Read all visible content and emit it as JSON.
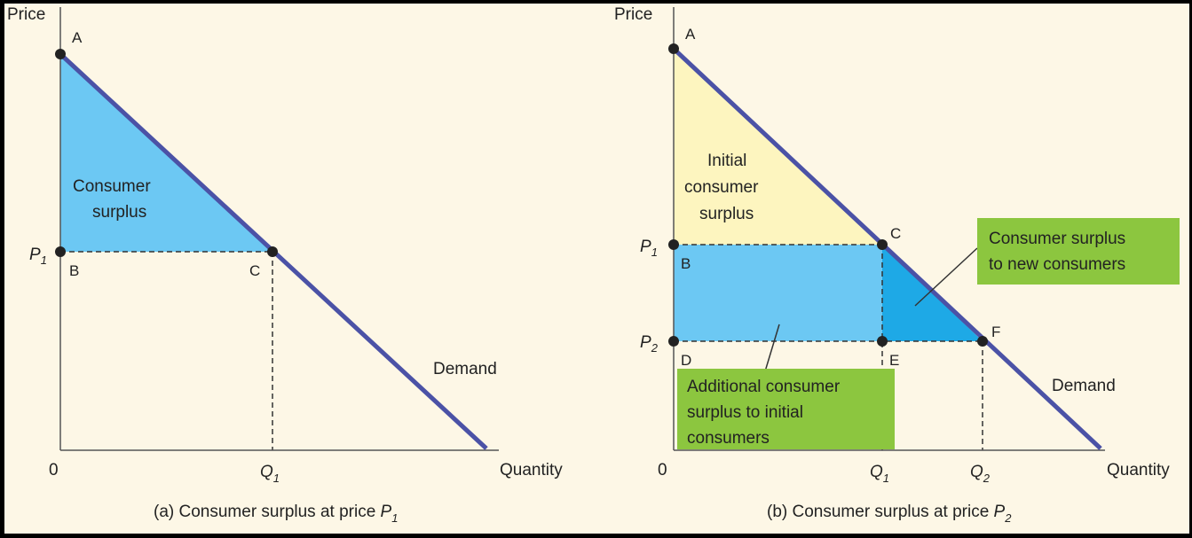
{
  "colors": {
    "background": "#fdf7e6",
    "frame": "#000000",
    "axis": "#555555",
    "demand_line": "#4b52a6",
    "surplus_blue": "#6cc8f3",
    "surplus_dark_blue": "#1ea9e6",
    "initial_yellow": "#fdf5bf",
    "callout_green": "#8cc63f",
    "dot": "#222222"
  },
  "panel_a": {
    "y_axis_label": "Price",
    "x_axis_label": "Quantity",
    "origin_label": "0",
    "price_label": {
      "base": "P",
      "sub": "1"
    },
    "quantity_label": {
      "base": "Q",
      "sub": "1"
    },
    "points": {
      "A": "A",
      "B": "B",
      "C": "C"
    },
    "region_label": [
      "Consumer",
      "surplus"
    ],
    "demand_label": "Demand",
    "caption": {
      "prefix": "(a) Consumer surplus at price ",
      "base": "P",
      "sub": "1"
    }
  },
  "panel_b": {
    "y_axis_label": "Price",
    "x_axis_label": "Quantity",
    "origin_label": "0",
    "price_labels": [
      {
        "base": "P",
        "sub": "1"
      },
      {
        "base": "P",
        "sub": "2"
      }
    ],
    "quantity_labels": [
      {
        "base": "Q",
        "sub": "1"
      },
      {
        "base": "Q",
        "sub": "2"
      }
    ],
    "points": {
      "A": "A",
      "B": "B",
      "C": "C",
      "D": "D",
      "E": "E",
      "F": "F"
    },
    "initial_label": [
      "Initial",
      "consumer",
      "surplus"
    ],
    "new_consumers_callout": [
      "Consumer surplus",
      "to new consumers"
    ],
    "additional_callout": [
      "Additional consumer",
      "surplus to initial",
      "consumers"
    ],
    "demand_label": "Demand",
    "caption": {
      "prefix": "(b) Consumer surplus at price ",
      "base": "P",
      "sub": "2"
    }
  }
}
